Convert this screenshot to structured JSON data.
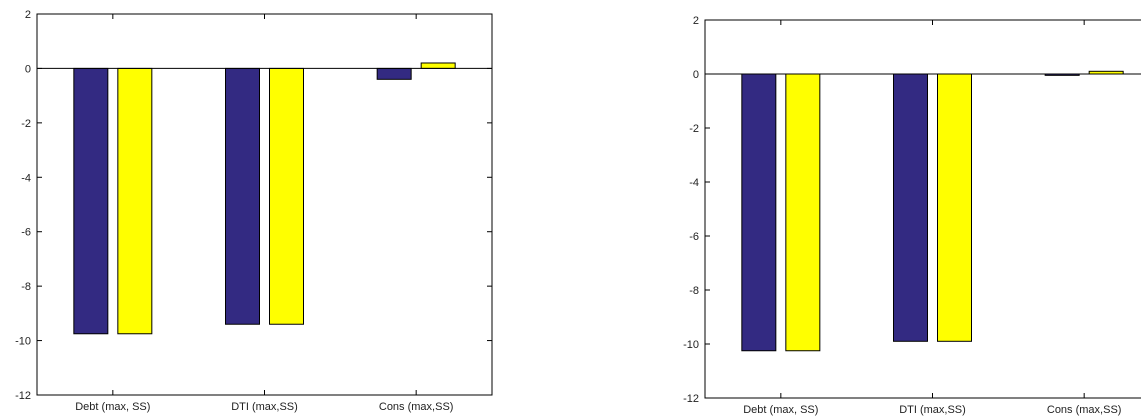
{
  "colors": {
    "series_1": "#332a82",
    "series_2": "#ffff00",
    "axis": "#000000"
  },
  "chart_data": [
    {
      "type": "bar",
      "title": "",
      "xlabel": "",
      "ylabel": "",
      "ylim": [
        -12,
        2
      ],
      "yticks": [
        2,
        0,
        -2,
        -4,
        -6,
        -8,
        -10,
        -12
      ],
      "grid": false,
      "categories": [
        "Debt (max, SS)",
        "DTI (max,SS)",
        "Cons (max,SS)"
      ],
      "series": [
        {
          "color": "#332a82",
          "values": [
            -9.75,
            -9.4,
            -0.4
          ]
        },
        {
          "color": "#ffff00",
          "values": [
            -9.75,
            -9.4,
            0.2
          ]
        }
      ]
    },
    {
      "type": "bar",
      "title": "",
      "xlabel": "",
      "ylabel": "",
      "ylim": [
        -12,
        2
      ],
      "yticks": [
        2,
        0,
        -2,
        -4,
        -6,
        -8,
        -10,
        -12
      ],
      "grid": false,
      "categories": [
        "Debt (max, SS)",
        "DTI (max,SS)",
        "Cons (max,SS)"
      ],
      "series": [
        {
          "color": "#332a82",
          "values": [
            -10.25,
            -9.9,
            -0.05
          ]
        },
        {
          "color": "#ffff00",
          "values": [
            -10.25,
            -9.9,
            0.1
          ]
        }
      ]
    }
  ]
}
